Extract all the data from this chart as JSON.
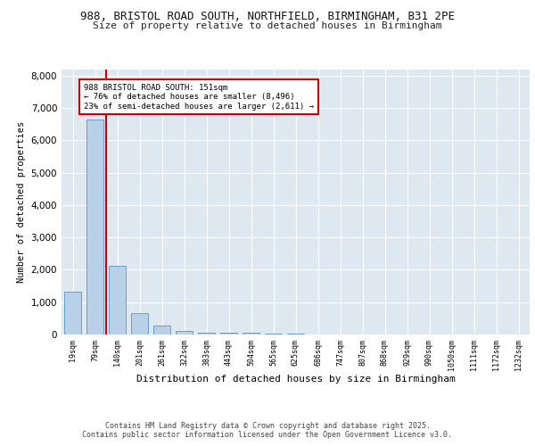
{
  "title1": "988, BRISTOL ROAD SOUTH, NORTHFIELD, BIRMINGHAM, B31 2PE",
  "title2": "Size of property relative to detached houses in Birmingham",
  "xlabel": "Distribution of detached houses by size in Birmingham",
  "ylabel": "Number of detached properties",
  "annotation_lines": [
    "988 BRISTOL ROAD SOUTH: 151sqm",
    "← 76% of detached houses are smaller (8,496)",
    "23% of semi-detached houses are larger (2,611) →"
  ],
  "bar_labels": [
    "19sqm",
    "79sqm",
    "140sqm",
    "201sqm",
    "261sqm",
    "322sqm",
    "383sqm",
    "443sqm",
    "504sqm",
    "565sqm",
    "625sqm",
    "686sqm",
    "747sqm",
    "807sqm",
    "868sqm",
    "929sqm",
    "990sqm",
    "1050sqm",
    "1111sqm",
    "1172sqm",
    "1232sqm"
  ],
  "bar_values": [
    1320,
    6630,
    2110,
    650,
    280,
    100,
    65,
    55,
    55,
    30,
    30,
    0,
    0,
    0,
    0,
    0,
    0,
    0,
    0,
    0,
    0
  ],
  "bar_color": "#b8d0e8",
  "bar_edge_color": "#6aa0c8",
  "vline_x_index": 2,
  "vline_color": "#cc0000",
  "annotation_box_color": "#cc0000",
  "ylim": [
    0,
    8200
  ],
  "yticks": [
    0,
    1000,
    2000,
    3000,
    4000,
    5000,
    6000,
    7000,
    8000
  ],
  "plot_bg_color": "#dde8f0",
  "fig_bg_color": "#ffffff",
  "footer_line1": "Contains HM Land Registry data © Crown copyright and database right 2025.",
  "footer_line2": "Contains public sector information licensed under the Open Government Licence v3.0.",
  "title_fontsize": 9,
  "subtitle_fontsize": 8,
  "bar_width": 0.75
}
